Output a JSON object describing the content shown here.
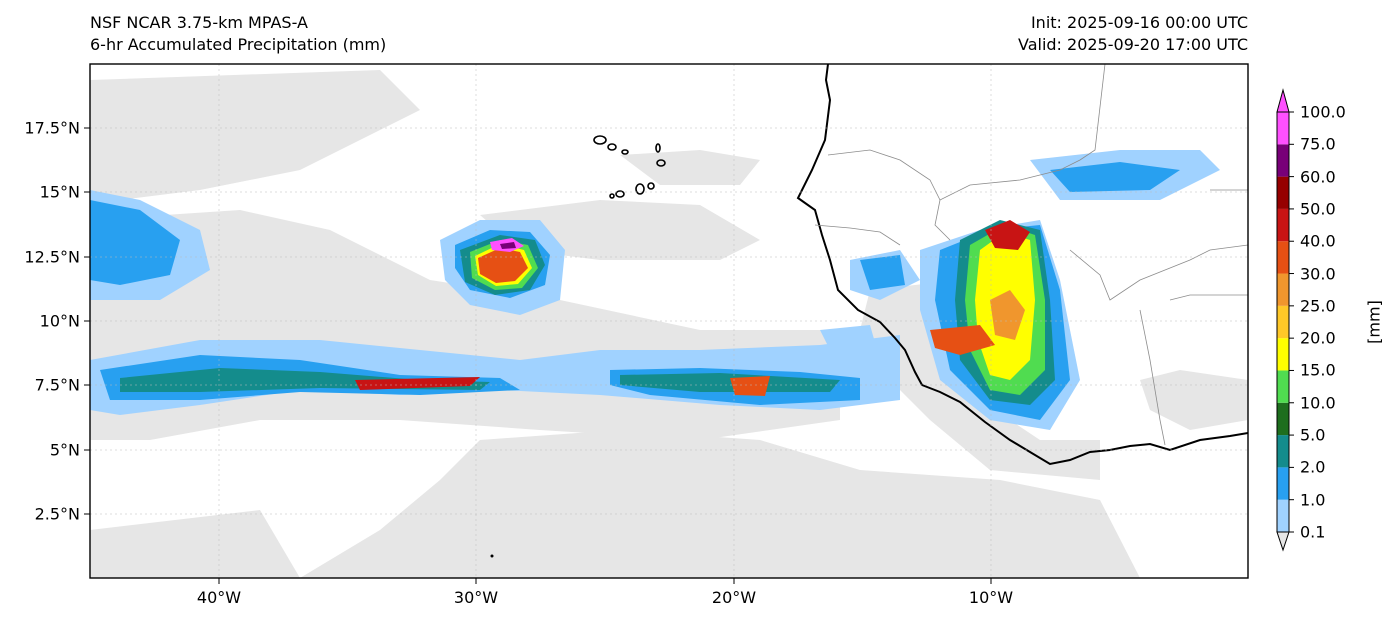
{
  "title": {
    "left_line1": "NSF NCAR 3.75-km MPAS-A",
    "left_line2": "6-hr Accumulated Precipitation (mm)",
    "right_line1": "Init: 2025-09-16 00:00 UTC",
    "right_line2": "Valid: 2025-09-20 17:00 UTC"
  },
  "axes": {
    "lat_labels": [
      "17.5°N",
      "15°N",
      "12.5°N",
      "10°N",
      "7.5°N",
      "5°N",
      "2.5°N"
    ],
    "lon_labels": [
      "40°W",
      "30°W",
      "20°W",
      "10°W"
    ]
  },
  "colorbar": {
    "units_label": "[mm]",
    "levels": [
      "0.1",
      "1.0",
      "2.0",
      "5.0",
      "10.0",
      "15.0",
      "20.0",
      "25.0",
      "30.0",
      "40.0",
      "50.0",
      "60.0",
      "75.0",
      "100.0"
    ],
    "colors": [
      "#e6e6e6",
      "#a0d2ff",
      "#28a0f0",
      "#148c8c",
      "#1e6e1e",
      "#50dc50",
      "#ffff00",
      "#ffc828",
      "#f0962d",
      "#e65014",
      "#c81414",
      "#960000",
      "#780078",
      "#ff50ff"
    ]
  },
  "map_colors": {
    "coast": "#000000",
    "borders": "#8c8c8c",
    "frame": "#000000"
  }
}
